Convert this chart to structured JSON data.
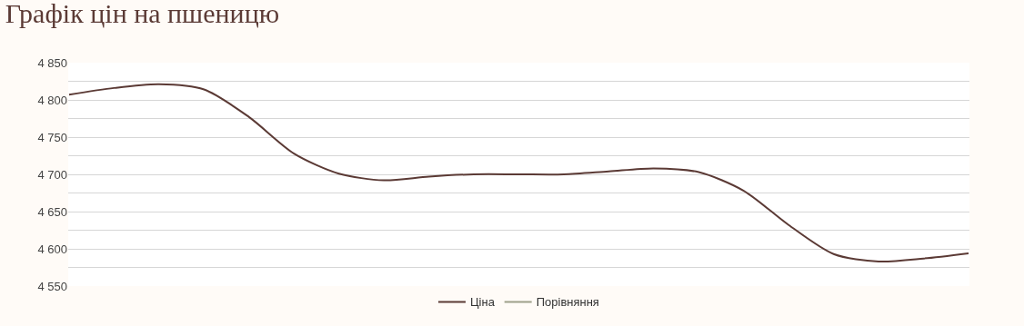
{
  "chart_data": {
    "type": "line",
    "title": "Графік цін на пшеницю",
    "categories": [
      null,
      null,
      null,
      null,
      null,
      null,
      null,
      null,
      null,
      null,
      null,
      null,
      null,
      null,
      null,
      null,
      null,
      null,
      null,
      null,
      null
    ],
    "series": [
      {
        "name": "Ціна",
        "color": "#5b3a35",
        "values": [
          4807,
          4816,
          4821,
          4814,
          4777,
          4728,
          4701,
          4692,
          4697,
          4700,
          4700,
          4700,
          4704,
          4708,
          4703,
          4678,
          4632,
          4593,
          4583,
          4587,
          4594
        ]
      },
      {
        "name": "Порівняння",
        "color": "#9ea08a",
        "values": [
          null,
          null,
          null,
          null,
          null,
          null,
          null,
          null,
          null,
          null,
          null,
          null,
          null,
          null,
          null,
          null,
          null,
          null,
          null,
          null,
          null
        ]
      }
    ],
    "ylim": [
      4550,
      4850
    ],
    "yticks": [
      {
        "value": 4550,
        "label": "4 550"
      },
      {
        "value": 4575,
        "label": null
      },
      {
        "value": 4600,
        "label": "4 600"
      },
      {
        "value": 4625,
        "label": null
      },
      {
        "value": 4650,
        "label": "4 650"
      },
      {
        "value": 4675,
        "label": null
      },
      {
        "value": 4700,
        "label": "4 700"
      },
      {
        "value": 4725,
        "label": null
      },
      {
        "value": 4750,
        "label": "4 750"
      },
      {
        "value": 4775,
        "label": null
      },
      {
        "value": 4800,
        "label": "4 800"
      },
      {
        "value": 4825,
        "label": null
      },
      {
        "value": 4850,
        "label": "4 850"
      }
    ],
    "grid": "y",
    "legend": "bottom",
    "marker": "none",
    "line_style": "solid"
  }
}
